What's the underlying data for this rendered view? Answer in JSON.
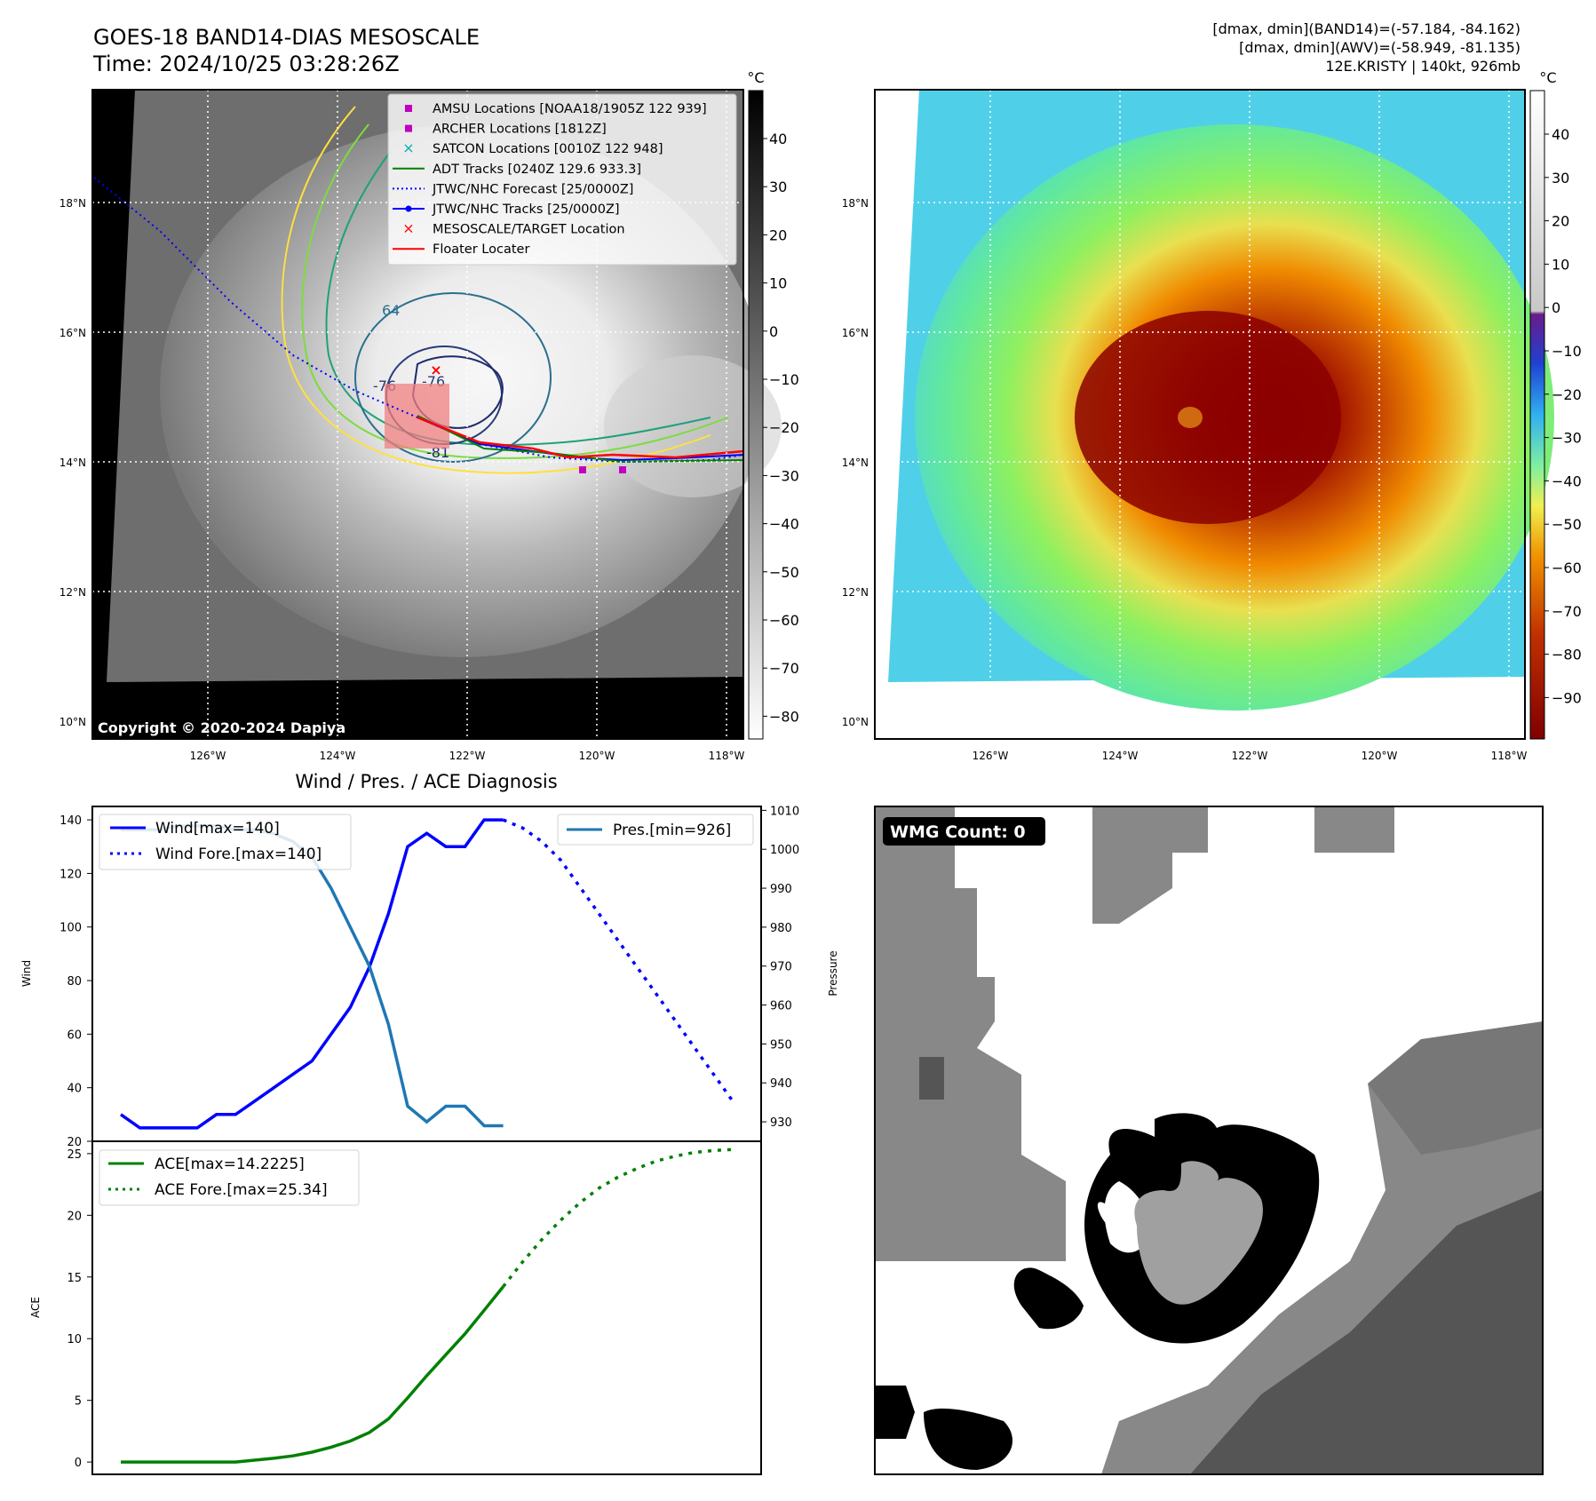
{
  "header": {
    "title_line1": "GOES-18 BAND14-DIAS MESOSCALE",
    "title_line2": "Time: 2024/10/25 03:28:26Z",
    "stats_line1": "[dmax, dmin](BAND14)=(-57.184, -84.162)",
    "stats_line2": "[dmax, dmin](AWV)=(-58.949, -81.135)",
    "stats_line3": "12E.KRISTY | 140kt, 926mb"
  },
  "map_axes": {
    "lon_labels": [
      "126°W",
      "124°W",
      "122°W",
      "120°W",
      "118°W"
    ],
    "lat_labels": [
      "18°N",
      "16°N",
      "14°N",
      "12°N",
      "10°N"
    ]
  },
  "colorbar_left": {
    "unit": "°C",
    "ticks": [
      "40",
      "30",
      "20",
      "10",
      "0",
      "−10",
      "−20",
      "−30",
      "−40",
      "−50",
      "−60",
      "−70",
      "−80"
    ]
  },
  "colorbar_right": {
    "unit": "°C",
    "ticks": [
      "40",
      "30",
      "20",
      "10",
      "0",
      "−10",
      "−20",
      "−30",
      "−40",
      "−50",
      "−60",
      "−70",
      "−80",
      "−90"
    ]
  },
  "legend": {
    "items": [
      {
        "label": "AMSU Locations [NOAA18/1905Z 122 939]",
        "color": "#c000c0",
        "marker": "square"
      },
      {
        "label": "ARCHER Locations [1812Z]",
        "color": "#c000c0",
        "marker": "square"
      },
      {
        "label": "SATCON Locations [0010Z 122 948]",
        "color": "#00b0b0",
        "marker": "x"
      },
      {
        "label": "ADT Tracks [0240Z 129.6 933.3]",
        "color": "#008000",
        "marker": "line"
      },
      {
        "label": "JTWC/NHC Forecast [25/0000Z]",
        "color": "#0000ff",
        "marker": "dotted"
      },
      {
        "label": "JTWC/NHC Tracks [25/0000Z]",
        "color": "#0000ff",
        "marker": "line-dot"
      },
      {
        "label": "MESOSCALE/TARGET Location",
        "color": "#ff0000",
        "marker": "x"
      },
      {
        "label": "Floater Locater",
        "color": "#ff0000",
        "marker": "line"
      }
    ]
  },
  "copyright": "Copyright © 2020-2024 Dapiya",
  "contour_labels": [
    "64",
    "-76",
    "-76",
    "-81",
    "-76",
    "-64"
  ],
  "wmg_count": "WMG Count: 0",
  "chart_data": [
    {
      "type": "line",
      "title": "Wind / Pres. / ACE Diagnosis",
      "ylabel": "Wind",
      "y2label": "Pressure",
      "ylim": [
        20,
        145
      ],
      "y2lim": [
        925,
        1011
      ],
      "yticks": [
        "20",
        "40",
        "60",
        "80",
        "100",
        "120",
        "140"
      ],
      "y2ticks": [
        "930",
        "940",
        "950",
        "960",
        "970",
        "980",
        "990",
        "1000",
        "1010"
      ],
      "x": [
        0,
        1,
        2,
        3,
        4,
        5,
        6,
        7,
        8,
        9,
        10,
        11,
        12,
        13,
        14,
        15,
        16,
        17,
        18,
        19,
        20
      ],
      "series": [
        {
          "name": "Wind[max=140]",
          "color": "#0000ff",
          "style": "solid",
          "axis": "left",
          "values": [
            30,
            25,
            25,
            25,
            25,
            30,
            30,
            35,
            40,
            45,
            50,
            60,
            70,
            85,
            105,
            130,
            135,
            130,
            130,
            140,
            140
          ]
        },
        {
          "name": "Wind Fore.[max=140]",
          "color": "#0000ff",
          "style": "dotted",
          "axis": "left",
          "x": [
            20,
            21,
            22,
            23,
            24,
            25,
            26,
            27,
            28,
            29,
            30,
            31,
            32
          ],
          "values": [
            140,
            137,
            132,
            125,
            115,
            105,
            95,
            85,
            75,
            65,
            55,
            45,
            35
          ]
        },
        {
          "name": "Pres.[min=926]",
          "color": "#1f77b4",
          "style": "solid",
          "axis": "right",
          "values": [
            1005,
            1005,
            1005,
            1006,
            1006,
            1006,
            1005,
            1005,
            1004,
            1002,
            998,
            990,
            980,
            970,
            955,
            934,
            930,
            934,
            934,
            929,
            929
          ]
        }
      ],
      "legend_left": "upper-left",
      "legend_right": "upper-right"
    },
    {
      "type": "line",
      "ylabel": "ACE",
      "ylim": [
        -1,
        26
      ],
      "yticks": [
        "0",
        "5",
        "10",
        "15",
        "20",
        "25"
      ],
      "series": [
        {
          "name": "ACE[max=14.2225]",
          "color": "#008000",
          "style": "solid",
          "x": [
            0,
            2,
            4,
            6,
            8,
            9,
            10,
            11,
            12,
            13,
            14,
            15,
            16,
            17,
            18,
            19,
            20
          ],
          "values": [
            0,
            0,
            0,
            0,
            0.3,
            0.5,
            0.8,
            1.2,
            1.7,
            2.4,
            3.5,
            5.2,
            7.0,
            8.7,
            10.4,
            12.3,
            14.2225
          ]
        },
        {
          "name": "ACE Fore.[max=25.34]",
          "color": "#008000",
          "style": "dotted",
          "x": [
            20,
            21,
            22,
            23,
            24,
            25,
            26,
            27,
            28,
            29,
            30,
            31,
            32
          ],
          "values": [
            14.2225,
            16.2,
            18.0,
            19.6,
            21.0,
            22.2,
            23.1,
            23.8,
            24.4,
            24.8,
            25.1,
            25.25,
            25.34
          ]
        }
      ],
      "legend": "upper-left"
    }
  ]
}
